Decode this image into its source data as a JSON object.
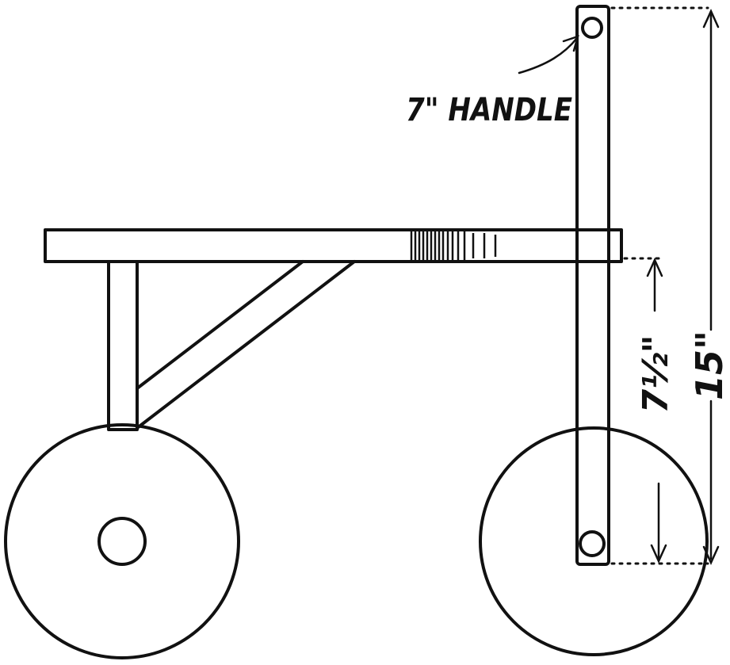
{
  "labels": {
    "handle": "7\" HANDLE",
    "short_dimension": "7½\"",
    "total_height": "15\""
  },
  "colors": {
    "ink": "#111111",
    "background": "#ffffff"
  }
}
